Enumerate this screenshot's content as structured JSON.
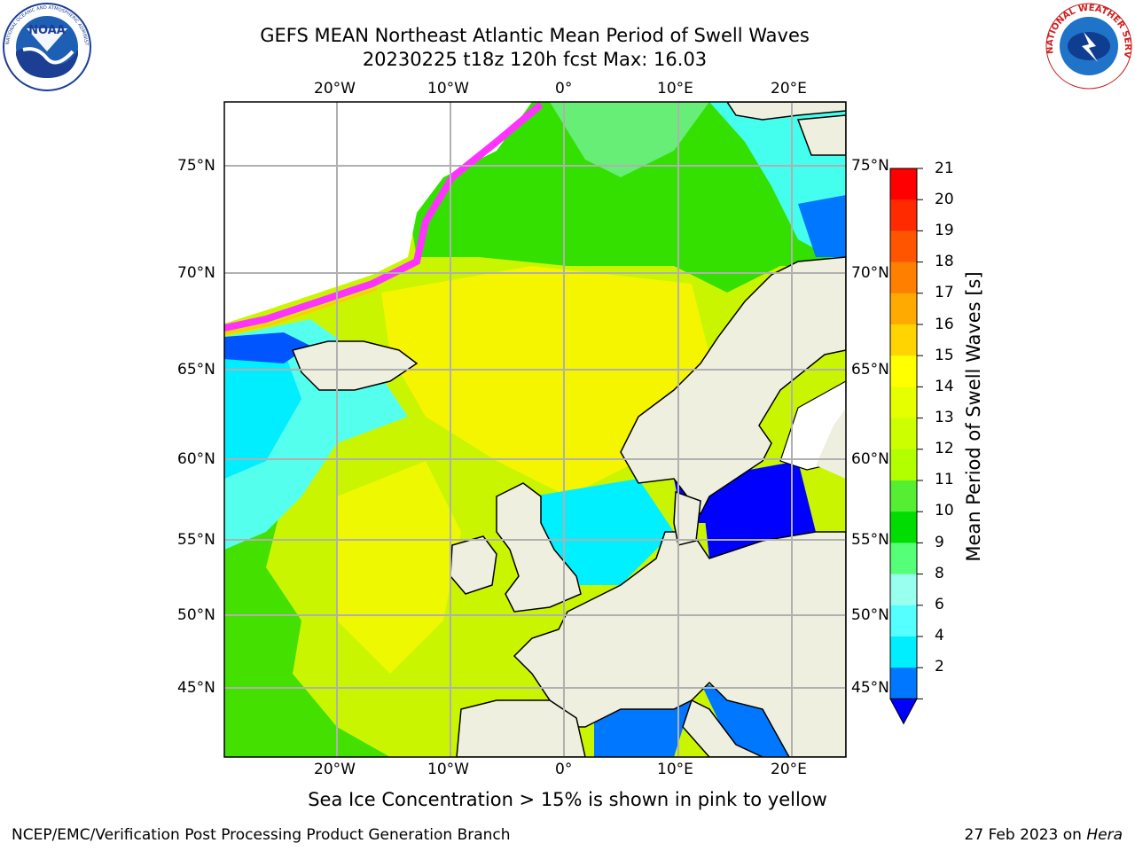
{
  "header": {
    "title_line1": "GEFS MEAN Northeast Atlantic Mean Period of Swell Waves",
    "title_line2": "20230225 t18z 120h fcst   Max: 16.03"
  },
  "logos": {
    "left": "NOAA",
    "left_ring_text": "NATIONAL OCEANIC AND ATMOSPHERIC ADMINISTRATION · U.S. DEPARTMENT OF COMMERCE",
    "right_ring_text": "NATIONAL WEATHER SERVICE"
  },
  "map": {
    "lon_labels": [
      "20°W",
      "10°W",
      "0°",
      "10°E",
      "20°E"
    ],
    "lat_labels": [
      "75°N",
      "70°N",
      "65°N",
      "60°N",
      "55°N",
      "50°N",
      "45°N"
    ],
    "colors": {
      "land": "#efefdf",
      "ice_white": "#ffffff",
      "grid": "#b0b0b0",
      "coast": "#000000"
    }
  },
  "colorbar": {
    "label": "Mean Period of Swell Waves [s]",
    "ticks": [
      "21",
      "20",
      "19",
      "18",
      "17",
      "16",
      "15",
      "14",
      "13",
      "12",
      "11",
      "10",
      "9",
      "8",
      "6",
      "4",
      "2"
    ],
    "colors_top_to_bottom": [
      "#ff0000",
      "#ff2a00",
      "#ff5500",
      "#ff7f00",
      "#ffaa00",
      "#ffd400",
      "#ffff00",
      "#e6ff00",
      "#ccff00",
      "#b2ff00",
      "#55ee33",
      "#00dd00",
      "#55ff77",
      "#99ffee",
      "#55ffff",
      "#00eeff",
      "#0077ff"
    ],
    "extend_color": "#0000ff"
  },
  "footer": {
    "note": "Sea Ice Concentration > 15% is shown in pink to yellow",
    "credit": "NCEP/EMC/Verification Post Processing Product Generation Branch",
    "date": "27 Feb 2023 on ",
    "machine": "Hera"
  }
}
